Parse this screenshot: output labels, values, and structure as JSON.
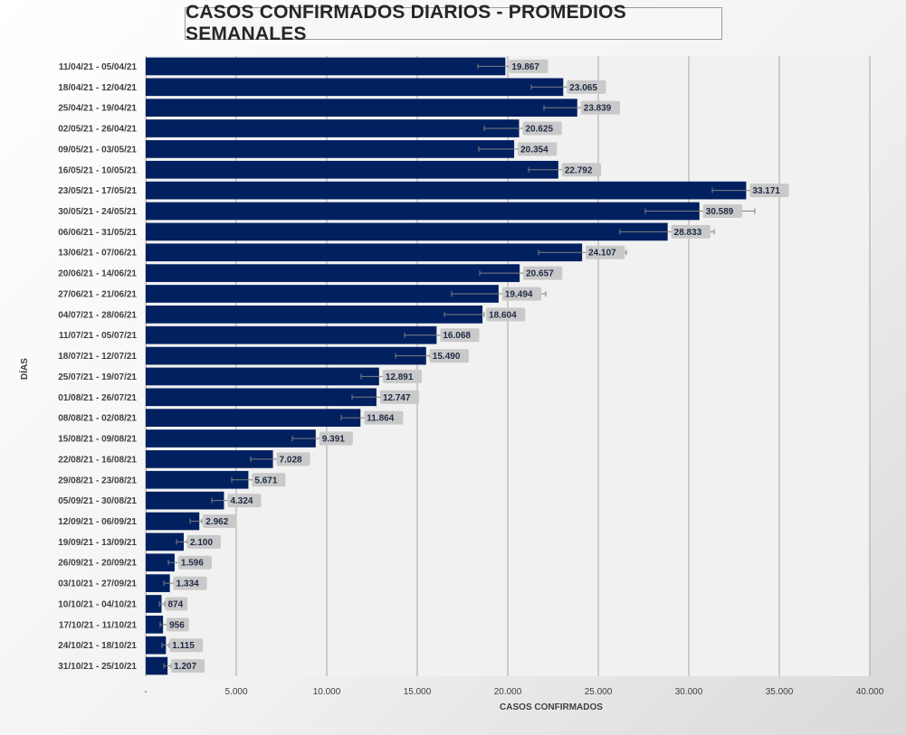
{
  "chart_data": {
    "type": "bar",
    "orientation": "horizontal",
    "title": "CASOS CONFIRMADOS DIARIOS - PROMEDIOS SEMANALES",
    "xlabel": "CASOS CONFIRMADOS",
    "ylabel": "DÍAS",
    "xlim": [
      0,
      40000
    ],
    "x_ticks": [
      0,
      5000,
      10000,
      15000,
      20000,
      25000,
      30000,
      35000,
      40000
    ],
    "x_tick_labels": [
      "-",
      "5.000",
      "10.000",
      "15.000",
      "20.000",
      "25.000",
      "30.000",
      "35.000",
      "40.000"
    ],
    "grid": "vertical",
    "bar_color": "#002060",
    "categories": [
      "11/04/21 - 05/04/21",
      "18/04/21 - 12/04/21",
      "25/04/21 - 19/04/21",
      "02/05/21 - 26/04/21",
      "09/05/21 - 03/05/21",
      "16/05/21 - 10/05/21",
      "23/05/21 - 17/05/21",
      "30/05/21 - 24/05/21",
      "06/06/21 - 31/05/21",
      "13/06/21 - 07/06/21",
      "20/06/21 - 14/06/21",
      "27/06/21 - 21/06/21",
      "04/07/21 - 28/06/21",
      "11/07/21 - 05/07/21",
      "18/07/21 - 12/07/21",
      "25/07/21 - 19/07/21",
      "01/08/21 - 26/07/21",
      "08/08/21 - 02/08/21",
      "15/08/21 - 09/08/21",
      "22/08/21 - 16/08/21",
      "29/08/21 - 23/08/21",
      "05/09/21 - 30/08/21",
      "12/09/21 - 06/09/21",
      "19/09/21 - 13/09/21",
      "26/09/21 - 20/09/21",
      "03/10/21 - 27/09/21",
      "10/10/21 - 04/10/21",
      "17/10/21 - 11/10/21",
      "24/10/21 - 18/10/21",
      "31/10/21 - 25/10/21"
    ],
    "values": [
      19867,
      23065,
      23839,
      20625,
      20354,
      22792,
      33171,
      30589,
      28833,
      24107,
      20657,
      19494,
      18604,
      16068,
      15490,
      12891,
      12747,
      11864,
      9391,
      7028,
      5671,
      4324,
      2962,
      2100,
      1596,
      1334,
      874,
      956,
      1115,
      1207
    ],
    "value_labels": [
      "19.867",
      "23.065",
      "23.839",
      "20.625",
      "20.354",
      "22.792",
      "33.171",
      "30.589",
      "28.833",
      "24.107",
      "20.657",
      "19.494",
      "18.604",
      "16.068",
      "15.490",
      "12.891",
      "12.747",
      "11.864",
      "9.391",
      "7.028",
      "5.671",
      "4.324",
      "2.962",
      "2.100",
      "1.596",
      "1.334",
      "874",
      "956",
      "1.115",
      "1.207"
    ],
    "error_low": [
      18350,
      21300,
      22000,
      18700,
      18400,
      21150,
      31300,
      27600,
      26200,
      21700,
      18450,
      16900,
      16500,
      14300,
      13800,
      11900,
      11400,
      10800,
      8100,
      5800,
      4750,
      3650,
      2450,
      1700,
      1250,
      1000,
      750,
      800,
      900,
      1000
    ],
    "error_high": [
      20450,
      23300,
      24300,
      20850,
      20700,
      23200,
      33650,
      33650,
      31400,
      26550,
      22950,
      22100,
      18700,
      16300,
      15700,
      14100,
      14000,
      12700,
      9700,
      7700,
      5950,
      4600,
      3100,
      2300,
      1850,
      1550,
      1050,
      1200,
      1300,
      1400
    ]
  }
}
